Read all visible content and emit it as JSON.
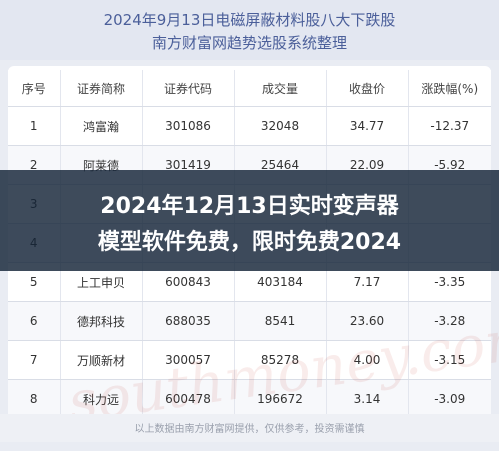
{
  "header": {
    "title_line1": "2024年9月13日电磁屏蔽材料股八大下跌股",
    "title_line2": "南方财富网趋势选股系统整理"
  },
  "table": {
    "columns": [
      "序号",
      "证券简称",
      "证券代码",
      "成交量",
      "收盘价",
      "涨跌幅(%)"
    ],
    "rows": [
      [
        "1",
        "鸿富瀚",
        "301086",
        "32048",
        "34.77",
        "-12.37"
      ],
      [
        "2",
        "阿莱德",
        "301419",
        "25464",
        "22.09",
        "-5.92"
      ],
      [
        "3",
        "",
        "",
        "",
        "",
        ""
      ],
      [
        "4",
        "",
        "",
        "",
        "",
        ""
      ],
      [
        "5",
        "上工申贝",
        "600843",
        "403184",
        "7.17",
        "-3.35"
      ],
      [
        "6",
        "德邦科技",
        "688035",
        "8541",
        "23.60",
        "-3.28"
      ],
      [
        "7",
        "万顺新材",
        "300057",
        "85278",
        "4.00",
        "-3.15"
      ],
      [
        "8",
        "科力远",
        "600478",
        "196672",
        "3.14",
        "-3.09"
      ]
    ]
  },
  "overlay": {
    "line1": "2024年12月13日实时变声器",
    "line2": "模型软件免费，限时免费2024"
  },
  "watermark": "southmoney.com",
  "footer": "以上数据由南方财富网提供，仅供参考，投资需谨慎"
}
